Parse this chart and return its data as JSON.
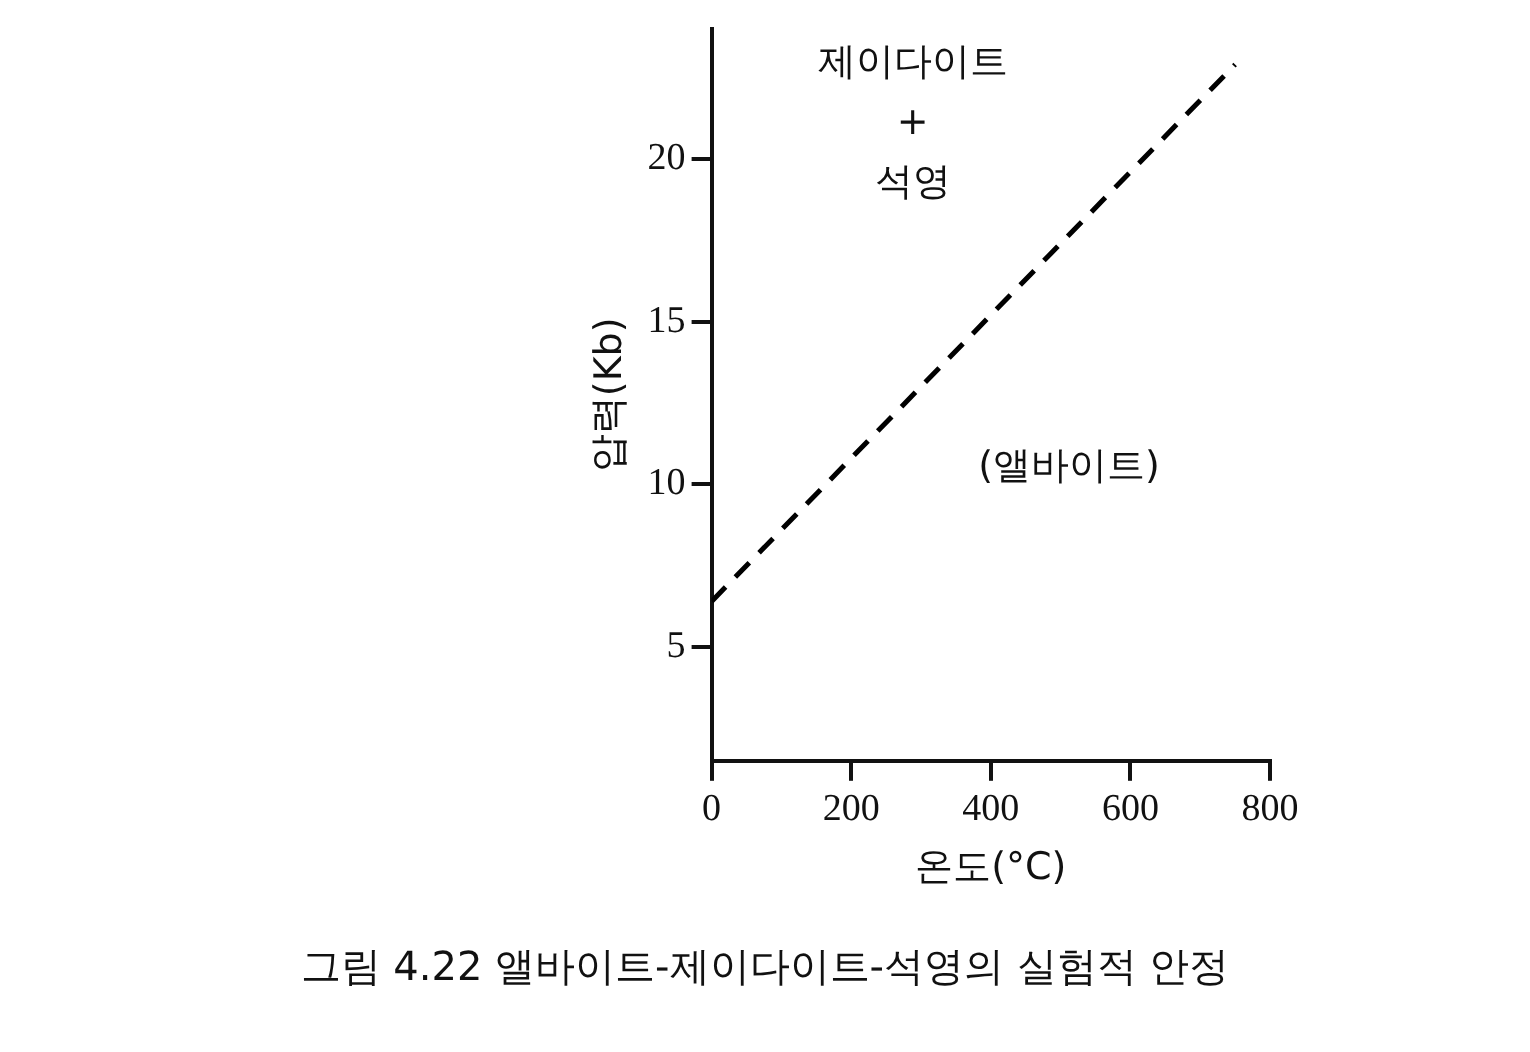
{
  "chart_data": {
    "type": "line",
    "xlabel": "온도(°C)",
    "ylabel": "압력(Kb)",
    "x": [
      0,
      750
    ],
    "series": [
      {
        "color": "#000000",
        "values": [
          6.4,
          22.9
        ]
      }
    ],
    "xlim": [
      0,
      800
    ],
    "ylim": [
      1.5,
      24
    ],
    "xticks": [
      0,
      200,
      400,
      600,
      800
    ],
    "yticks": [
      5,
      10,
      15,
      20
    ],
    "marker": "none",
    "line_style": "dashed",
    "annotations": [
      "제이다이트\n+\n석영",
      "(앨바이트)",
      "그림 4.22  앨바이트-제이다이트-석영의 실험적 안정"
    ]
  }
}
